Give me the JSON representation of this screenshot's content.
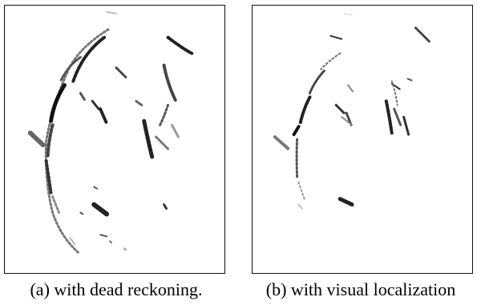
{
  "figure": {
    "panel_a": {
      "caption": "(a) with dead reckoning."
    },
    "panel_b": {
      "caption": "(b) with visual localization"
    }
  }
}
